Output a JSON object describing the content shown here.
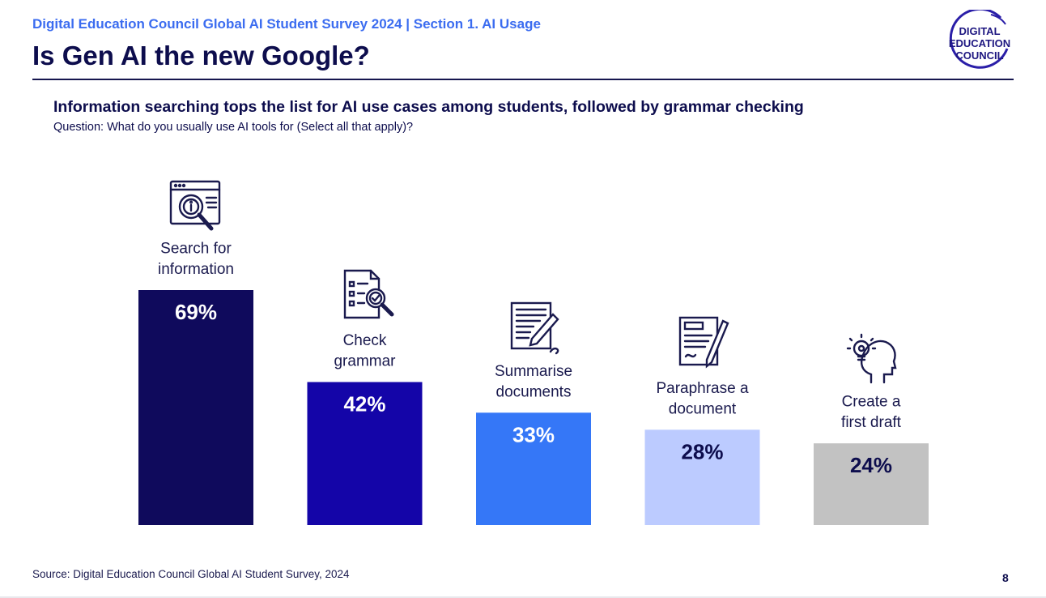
{
  "header": {
    "kicker": "Digital Education Council Global AI Student Survey 2024 | Section 1. AI Usage",
    "title": "Is Gen AI the new Google?",
    "logo_lines": [
      "DIGITAL",
      "EDUCATION",
      "COUNCIL"
    ]
  },
  "headline": "Information searching tops the list for AI use cases among students, followed by grammar checking",
  "question": "Question: What do you usually use AI tools for (Select all that apply)?",
  "chart_data": {
    "type": "bar",
    "categories": [
      "Search for information",
      "Check grammar",
      "Summarise documents",
      "Paraphrase a document",
      "Create a first draft"
    ],
    "category_lines": [
      [
        "Search for",
        "information"
      ],
      [
        "Check",
        "grammar"
      ],
      [
        "Summarise",
        "documents"
      ],
      [
        "Paraphrase a",
        "document"
      ],
      [
        "Create a",
        "first draft"
      ]
    ],
    "values": [
      69,
      42,
      33,
      28,
      24
    ],
    "value_labels": [
      "69%",
      "42%",
      "33%",
      "28%",
      "24%"
    ],
    "colors": [
      "#0f0a5c",
      "#1405a8",
      "#3577f7",
      "#bccbff",
      "#c2c2c2"
    ],
    "label_colors": [
      "#ffffff",
      "#ffffff",
      "#ffffff",
      "#0d0d4d",
      "#0d0d4d"
    ],
    "icons": [
      "browser-search-icon",
      "checklist-magnifier-icon",
      "document-pen-icon",
      "clipboard-pen-icon",
      "head-lightbulb-icon"
    ],
    "ylim": [
      0,
      69
    ],
    "grid": false,
    "legend": "none"
  },
  "footer": {
    "source": "Source: Digital Education Council Global AI Student Survey, 2024",
    "page_number": "8"
  }
}
